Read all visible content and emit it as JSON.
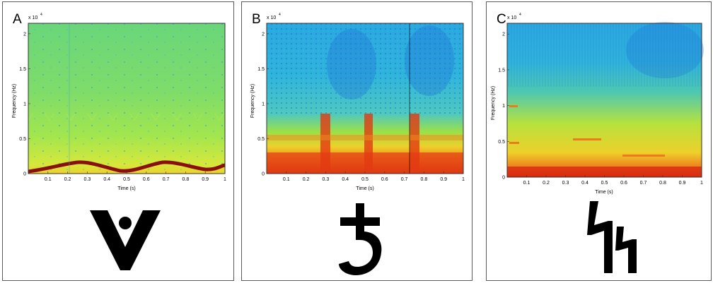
{
  "panels": [
    {
      "letter": "A",
      "exponent_label": "x 10",
      "exponent_power": "4",
      "ylabel": "Frequency (Hz)",
      "xlabel": "Time (s)",
      "glyph_icon": "v-with-dot-symbol-icon"
    },
    {
      "letter": "B",
      "exponent_label": "x 10",
      "exponent_power": "4",
      "ylabel": "Frequency (Hz)",
      "xlabel": "Time (s)",
      "glyph_icon": "cross-hook-symbol-icon"
    },
    {
      "letter": "C",
      "exponent_label": "x 10",
      "exponent_power": "4",
      "ylabel": "Frequency (Hz)",
      "xlabel": "Time (s)",
      "glyph_icon": "zigzag-rune-symbol-icon"
    }
  ],
  "axes": {
    "x_ticks": [
      "0.1",
      "0.2",
      "0.3",
      "0.4",
      "0.5",
      "0.6",
      "0.7",
      "0.8",
      "0.9",
      "1"
    ],
    "y_ticks": [
      "0",
      "0.5",
      "1",
      "1.5",
      "2"
    ]
  },
  "colors": {
    "low": "#1f6fd6",
    "mid_low": "#22c0d8",
    "mid": "#9ae64a",
    "mid_high": "#f0d02a",
    "high": "#e23a12",
    "max": "#8a0a0a"
  }
}
